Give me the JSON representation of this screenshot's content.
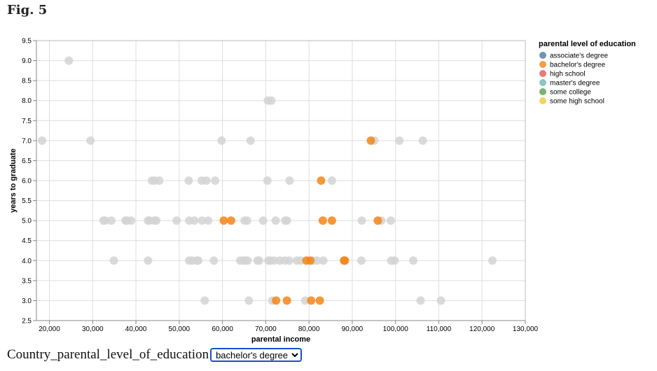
{
  "figure": {
    "title": "Fig. 5"
  },
  "filter": {
    "label": "Country_parental_level_of_education",
    "selected": "bachelor's degree",
    "options": [
      "bachelor's degree"
    ]
  },
  "chart_data": {
    "type": "scatter",
    "title": "",
    "xlabel": "parental income",
    "ylabel": "years to graduate",
    "xlim": [
      17000,
      130000
    ],
    "ylim": [
      2.5,
      9.5
    ],
    "x_ticks": [
      20000,
      30000,
      40000,
      50000,
      60000,
      70000,
      80000,
      90000,
      100000,
      110000,
      120000,
      130000
    ],
    "x_tick_labels": [
      "20,000",
      "30,000",
      "40,000",
      "50,000",
      "60,000",
      "70,000",
      "80,000",
      "90,000",
      "100,000",
      "110,000",
      "120,000",
      "130,000"
    ],
    "y_ticks": [
      2.5,
      3.0,
      3.5,
      4.0,
      4.5,
      5.0,
      5.5,
      6.0,
      6.5,
      7.0,
      7.5,
      8.0,
      8.5,
      9.0,
      9.5
    ],
    "y_tick_labels": [
      "2.5",
      "3.0",
      "3.5",
      "4.0",
      "4.5",
      "5.0",
      "5.5",
      "6.0",
      "6.5",
      "7.0",
      "7.5",
      "8.0",
      "8.5",
      "9.0",
      "9.5"
    ],
    "grid": true,
    "legend": {
      "title": "parental level of education",
      "placement": "right",
      "entries": [
        {
          "name": "associate's degree",
          "color": "#4c78a8"
        },
        {
          "name": "bachelor's degree",
          "color": "#f58518"
        },
        {
          "name": "high school",
          "color": "#e45756"
        },
        {
          "name": "master's degree",
          "color": "#72b7b2"
        },
        {
          "name": "some college",
          "color": "#54a24b"
        },
        {
          "name": "some high school",
          "color": "#eeca3b"
        }
      ]
    },
    "unselected_color": "#d3d3d3",
    "series": [
      {
        "name": "bachelor's degree",
        "color": "#f58518",
        "points": [
          {
            "x": 94300,
            "y": 7.0
          },
          {
            "x": 82800,
            "y": 6.0
          },
          {
            "x": 60300,
            "y": 5.0
          },
          {
            "x": 62000,
            "y": 5.0
          },
          {
            "x": 83200,
            "y": 5.0
          },
          {
            "x": 85300,
            "y": 5.0
          },
          {
            "x": 95900,
            "y": 5.0
          },
          {
            "x": 79400,
            "y": 4.0
          },
          {
            "x": 80300,
            "y": 4.0
          },
          {
            "x": 88100,
            "y": 4.0
          },
          {
            "x": 88300,
            "y": 4.0
          },
          {
            "x": 72400,
            "y": 3.0
          },
          {
            "x": 74900,
            "y": 3.0
          },
          {
            "x": 80500,
            "y": 3.0
          },
          {
            "x": 82500,
            "y": 3.0
          }
        ]
      },
      {
        "name": "other",
        "color": "#d3d3d3",
        "points": [
          {
            "x": 24500,
            "y": 9.0
          },
          {
            "x": 70500,
            "y": 8.0
          },
          {
            "x": 71300,
            "y": 8.0
          },
          {
            "x": 18300,
            "y": 7.0
          },
          {
            "x": 29500,
            "y": 7.0
          },
          {
            "x": 59800,
            "y": 7.0
          },
          {
            "x": 66500,
            "y": 7.0
          },
          {
            "x": 95100,
            "y": 7.0
          },
          {
            "x": 100900,
            "y": 7.0
          },
          {
            "x": 106300,
            "y": 7.0
          },
          {
            "x": 43700,
            "y": 6.0
          },
          {
            "x": 44300,
            "y": 6.0
          },
          {
            "x": 45400,
            "y": 6.0
          },
          {
            "x": 52200,
            "y": 6.0
          },
          {
            "x": 55200,
            "y": 6.0
          },
          {
            "x": 56300,
            "y": 6.0
          },
          {
            "x": 58300,
            "y": 6.0
          },
          {
            "x": 70400,
            "y": 6.0
          },
          {
            "x": 75500,
            "y": 6.0
          },
          {
            "x": 85300,
            "y": 6.0
          },
          {
            "x": 32500,
            "y": 5.0
          },
          {
            "x": 32900,
            "y": 5.0
          },
          {
            "x": 34300,
            "y": 5.0
          },
          {
            "x": 37600,
            "y": 5.0
          },
          {
            "x": 37900,
            "y": 5.0
          },
          {
            "x": 38900,
            "y": 5.0
          },
          {
            "x": 42800,
            "y": 5.0
          },
          {
            "x": 43100,
            "y": 5.0
          },
          {
            "x": 44300,
            "y": 5.0
          },
          {
            "x": 44700,
            "y": 5.0
          },
          {
            "x": 49400,
            "y": 5.0
          },
          {
            "x": 52300,
            "y": 5.0
          },
          {
            "x": 53500,
            "y": 5.0
          },
          {
            "x": 55300,
            "y": 5.0
          },
          {
            "x": 56700,
            "y": 5.0
          },
          {
            "x": 65100,
            "y": 5.0
          },
          {
            "x": 65700,
            "y": 5.0
          },
          {
            "x": 69400,
            "y": 5.0
          },
          {
            "x": 72300,
            "y": 5.0
          },
          {
            "x": 74500,
            "y": 5.0
          },
          {
            "x": 74900,
            "y": 5.0
          },
          {
            "x": 92200,
            "y": 5.0
          },
          {
            "x": 96700,
            "y": 5.0
          },
          {
            "x": 98900,
            "y": 5.0
          },
          {
            "x": 34900,
            "y": 4.0
          },
          {
            "x": 42800,
            "y": 4.0
          },
          {
            "x": 52300,
            "y": 4.0
          },
          {
            "x": 53000,
            "y": 4.0
          },
          {
            "x": 54100,
            "y": 4.0
          },
          {
            "x": 54400,
            "y": 4.0
          },
          {
            "x": 58000,
            "y": 4.0
          },
          {
            "x": 64100,
            "y": 4.0
          },
          {
            "x": 64900,
            "y": 4.0
          },
          {
            "x": 65300,
            "y": 4.0
          },
          {
            "x": 65800,
            "y": 4.0
          },
          {
            "x": 68100,
            "y": 4.0
          },
          {
            "x": 68500,
            "y": 4.0
          },
          {
            "x": 70600,
            "y": 4.0
          },
          {
            "x": 71100,
            "y": 4.0
          },
          {
            "x": 71900,
            "y": 4.0
          },
          {
            "x": 73200,
            "y": 4.0
          },
          {
            "x": 74400,
            "y": 4.0
          },
          {
            "x": 75400,
            "y": 4.0
          },
          {
            "x": 77200,
            "y": 4.0
          },
          {
            "x": 78100,
            "y": 4.0
          },
          {
            "x": 80900,
            "y": 4.0
          },
          {
            "x": 81800,
            "y": 4.0
          },
          {
            "x": 83300,
            "y": 4.0
          },
          {
            "x": 92100,
            "y": 4.0
          },
          {
            "x": 99000,
            "y": 4.0
          },
          {
            "x": 99800,
            "y": 4.0
          },
          {
            "x": 104100,
            "y": 4.0
          },
          {
            "x": 122400,
            "y": 4.0
          },
          {
            "x": 55900,
            "y": 3.0
          },
          {
            "x": 66100,
            "y": 3.0
          },
          {
            "x": 71500,
            "y": 3.0
          },
          {
            "x": 79100,
            "y": 3.0
          },
          {
            "x": 105800,
            "y": 3.0
          },
          {
            "x": 110500,
            "y": 3.0
          }
        ]
      }
    ]
  }
}
